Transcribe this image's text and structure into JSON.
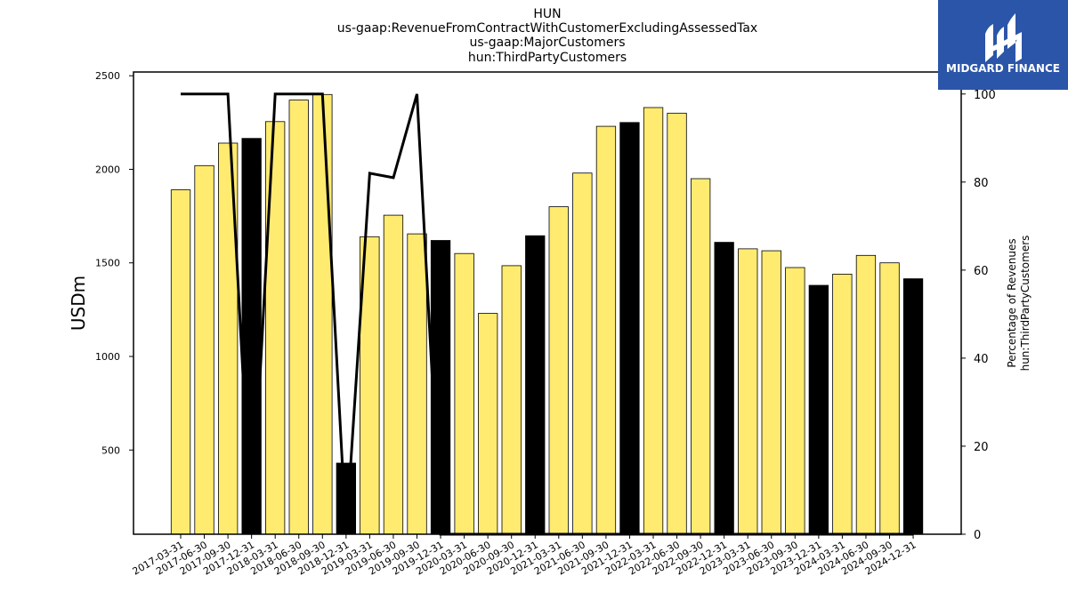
{
  "chart_data": {
    "type": "bar",
    "title_lines": [
      "HUN",
      "us-gaap:RevenueFromContractWithCustomerExcludingAssessedTax",
      "us-gaap:MajorCustomers",
      "hun:ThirdPartyCustomers"
    ],
    "ylabel": "USDm",
    "ylabel_right_lines": [
      "Percentage of Revenues",
      "hun:ThirdPartyCustomers"
    ],
    "ylim": [
      50,
      2520
    ],
    "yticks": [
      500,
      1000,
      1500,
      2000,
      2500
    ],
    "ylim_right": [
      0,
      105
    ],
    "yticks_right": [
      0,
      20,
      40,
      60,
      80,
      100
    ],
    "categories": [
      "2017-03-31",
      "2017-06-30",
      "2017-09-30",
      "2017-12-31",
      "2018-03-31",
      "2018-06-30",
      "2018-09-30",
      "2018-12-31",
      "2019-03-31",
      "2019-06-30",
      "2019-09-30",
      "2019-12-31",
      "2020-03-31",
      "2020-06-30",
      "2020-09-30",
      "2020-12-31",
      "2021-03-31",
      "2021-06-30",
      "2021-09-30",
      "2021-12-31",
      "2022-03-31",
      "2022-06-30",
      "2022-09-30",
      "2022-12-31",
      "2023-03-31",
      "2023-06-30",
      "2023-09-30",
      "2023-12-31",
      "2024-03-31",
      "2024-06-30",
      "2024-09-30",
      "2024-12-31"
    ],
    "series": [
      {
        "kind": "bar",
        "values": [
          1890,
          2020,
          2140,
          2165,
          2255,
          2370,
          2400,
          430,
          1640,
          1755,
          1655,
          1620,
          1550,
          1230,
          1485,
          1645,
          1800,
          1980,
          2230,
          2250,
          2330,
          2300,
          1950,
          1610,
          1575,
          1565,
          1475,
          1380,
          1440,
          1540,
          1500,
          1415
        ],
        "colors": [
          "#ffeb70",
          "#ffeb70",
          "#ffeb70",
          "#000000",
          "#ffeb70",
          "#ffeb70",
          "#ffeb70",
          "#000000",
          "#ffeb70",
          "#ffeb70",
          "#ffeb70",
          "#000000",
          "#ffeb70",
          "#ffeb70",
          "#ffeb70",
          "#000000",
          "#ffeb70",
          "#ffeb70",
          "#ffeb70",
          "#000000",
          "#ffeb70",
          "#ffeb70",
          "#ffeb70",
          "#000000",
          "#ffeb70",
          "#ffeb70",
          "#ffeb70",
          "#000000",
          "#ffeb70",
          "#ffeb70",
          "#ffeb70",
          "#000000"
        ]
      },
      {
        "kind": "line",
        "axis": "right",
        "values": [
          100,
          100,
          100,
          0,
          100,
          100,
          100,
          0,
          82,
          81,
          100,
          0,
          0,
          0,
          0,
          0,
          0,
          0,
          0,
          0,
          0,
          0,
          0,
          0,
          0,
          0,
          0,
          0,
          0,
          0,
          0,
          0
        ],
        "color": "#000000"
      }
    ],
    "grid": false
  },
  "logo": {
    "text": "MIDGARD FINANCE",
    "background": "#2b55a8"
  }
}
